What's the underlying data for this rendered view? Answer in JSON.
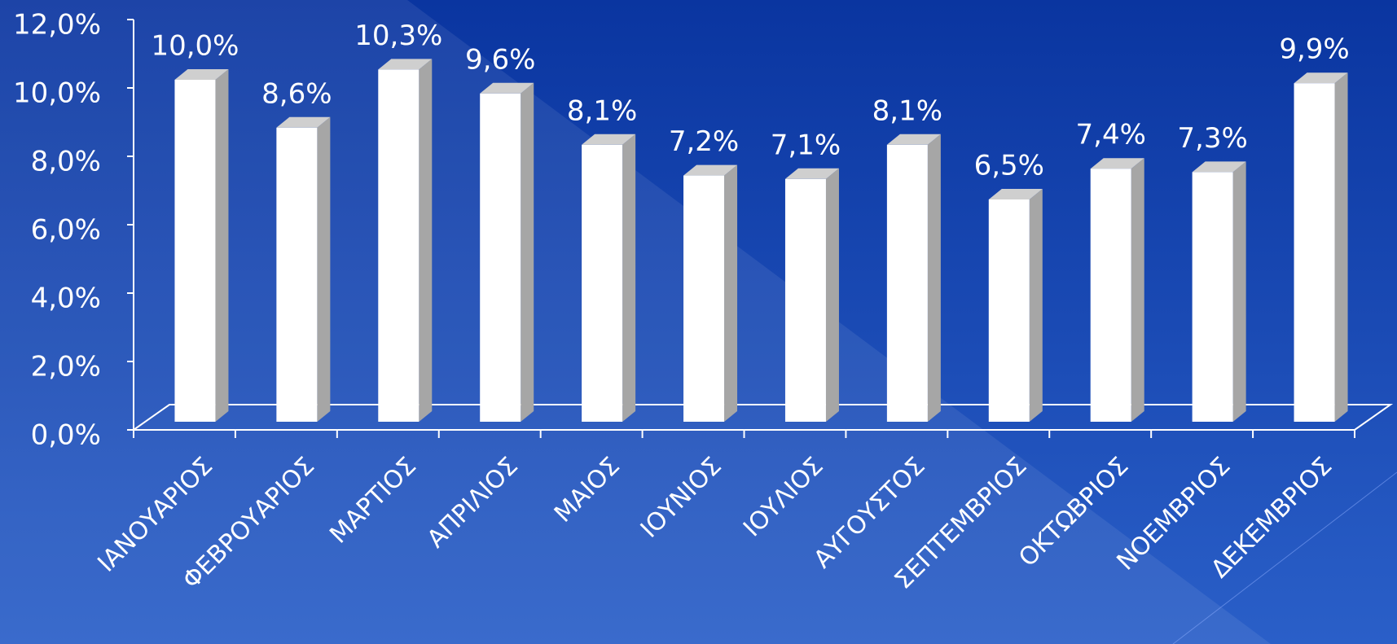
{
  "chart_data": {
    "type": "bar3d",
    "categories": [
      "ΙΑΝΟΥΑΡΙΟΣ",
      "ΦΕΒΡΟΥΑΡΙΟΣ",
      "ΜΑΡΤΙΟΣ",
      "ΑΠΡΙΛΙΟΣ",
      "ΜΑΙΟΣ",
      "ΙΟΥΝΙΟΣ",
      "ΙΟΥΛΙΟΣ",
      "ΑΥΓΟΥΣΤΟΣ",
      "ΣΕΠΤΕΜΒΡΙΟΣ",
      "ΟΚΤΩΒΡΙΟΣ",
      "ΝΟΕΜΒΡΙΟΣ",
      "ΔΕΚΕΜΒΡΙΟΣ"
    ],
    "values": [
      10.0,
      8.6,
      10.3,
      9.6,
      8.1,
      7.2,
      7.1,
      8.1,
      6.5,
      7.4,
      7.3,
      9.9
    ],
    "value_labels": [
      "10,0%",
      "8,6%",
      "10,3%",
      "9,6%",
      "8,1%",
      "7,2%",
      "7,1%",
      "8,1%",
      "6,5%",
      "7,4%",
      "7,3%",
      "9,9%"
    ],
    "color": "#ffffff",
    "ylim": [
      0,
      12
    ],
    "yticks": [
      {
        "value": 0,
        "label": "0,0%"
      },
      {
        "value": 2,
        "label": "2,0%"
      },
      {
        "value": 4,
        "label": "4,0%"
      },
      {
        "value": 6,
        "label": "6,0%"
      },
      {
        "value": 8,
        "label": "8,0%"
      },
      {
        "value": 10,
        "label": "10,0%"
      },
      {
        "value": 12,
        "label": "12,0%"
      }
    ]
  }
}
